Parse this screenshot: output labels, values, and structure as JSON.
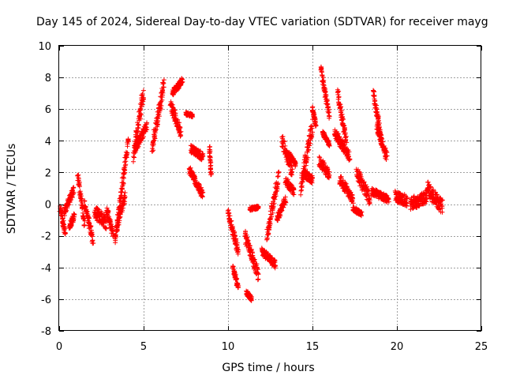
{
  "chart_data": {
    "type": "scatter",
    "title": "Day 145 of 2024, Sidereal Day-to-day VTEC variation (SDTVAR) for receiver mayg",
    "xlabel": "GPS time / hours",
    "ylabel": "SDTVAR / TECUs",
    "xlim": [
      0,
      25
    ],
    "ylim": [
      -8,
      10
    ],
    "xticks": [
      "0",
      "5",
      "10",
      "15",
      "20",
      "25"
    ],
    "yticks": [
      "-8",
      "-6",
      "-4",
      "-2",
      "0",
      "2",
      "4",
      "6",
      "8",
      "10"
    ],
    "grid": true,
    "marker": "plus",
    "color": "#ff0000",
    "segments": [
      {
        "x0": 0.05,
        "x1": 0.35,
        "y0": -0.2,
        "y1": -1.8,
        "spread": 0.6
      },
      {
        "x0": 0.3,
        "x1": 0.85,
        "y0": -0.5,
        "y1": 0.9,
        "spread": 0.5
      },
      {
        "x0": 0.6,
        "x1": 0.9,
        "y0": -1.5,
        "y1": -0.7,
        "spread": 0.4
      },
      {
        "x0": 1.1,
        "x1": 1.5,
        "y0": 1.8,
        "y1": -1.3,
        "spread": 0.5
      },
      {
        "x0": 1.5,
        "x1": 2.0,
        "y0": 0.1,
        "y1": -2.3,
        "spread": 0.6
      },
      {
        "x0": 2.1,
        "x1": 2.8,
        "y0": -0.5,
        "y1": -1.2,
        "spread": 0.8
      },
      {
        "x0": 2.8,
        "x1": 3.2,
        "y0": -0.3,
        "y1": -1.9,
        "spread": 0.6
      },
      {
        "x0": 3.3,
        "x1": 4.1,
        "y0": -2.3,
        "y1": 4.0,
        "spread": 0.8
      },
      {
        "x0": 3.4,
        "x1": 3.9,
        "y0": -1.5,
        "y1": 0.5,
        "spread": 0.6
      },
      {
        "x0": 4.4,
        "x1": 5.0,
        "y0": 3.0,
        "y1": 7.2,
        "spread": 1.0
      },
      {
        "x0": 4.5,
        "x1": 5.2,
        "y0": 3.5,
        "y1": 5.0,
        "spread": 0.6
      },
      {
        "x0": 5.5,
        "x1": 6.2,
        "y0": 3.5,
        "y1": 7.6,
        "spread": 0.9
      },
      {
        "x0": 6.7,
        "x1": 7.3,
        "y0": 7.0,
        "y1": 7.8,
        "spread": 0.4
      },
      {
        "x0": 6.6,
        "x1": 7.2,
        "y0": 6.3,
        "y1": 4.5,
        "spread": 0.7
      },
      {
        "x0": 7.5,
        "x1": 7.9,
        "y0": 5.7,
        "y1": 5.6,
        "spread": 0.2
      },
      {
        "x0": 7.8,
        "x1": 8.5,
        "y0": 3.5,
        "y1": 3.0,
        "spread": 0.5
      },
      {
        "x0": 7.7,
        "x1": 8.5,
        "y0": 2.2,
        "y1": 0.6,
        "spread": 0.5
      },
      {
        "x0": 8.9,
        "x1": 9.0,
        "y0": 3.7,
        "y1": 1.8,
        "spread": 0.2
      },
      {
        "x0": 10.0,
        "x1": 10.6,
        "y0": -0.5,
        "y1": -3.0,
        "spread": 0.6
      },
      {
        "x0": 10.3,
        "x1": 10.6,
        "y0": -4.0,
        "y1": -5.3,
        "spread": 0.4
      },
      {
        "x0": 11.0,
        "x1": 11.8,
        "y0": -2.0,
        "y1": -4.5,
        "spread": 0.8
      },
      {
        "x0": 11.1,
        "x1": 11.4,
        "y0": -5.6,
        "y1": -6.0,
        "spread": 0.3
      },
      {
        "x0": 11.3,
        "x1": 11.8,
        "y0": -0.3,
        "y1": -0.2,
        "spread": 0.2
      },
      {
        "x0": 12.0,
        "x1": 12.8,
        "y0": -3.0,
        "y1": -3.8,
        "spread": 0.5
      },
      {
        "x0": 12.3,
        "x1": 13.0,
        "y0": -2.0,
        "y1": 1.8,
        "spread": 0.8
      },
      {
        "x0": 12.9,
        "x1": 13.4,
        "y0": -1.0,
        "y1": 0.3,
        "spread": 0.5
      },
      {
        "x0": 13.2,
        "x1": 13.8,
        "y0": 4.0,
        "y1": 2.0,
        "spread": 0.8
      },
      {
        "x0": 13.4,
        "x1": 13.9,
        "y0": 1.5,
        "y1": 0.8,
        "spread": 0.5
      },
      {
        "x0": 13.6,
        "x1": 14.0,
        "y0": 3.2,
        "y1": 2.5,
        "spread": 0.3
      },
      {
        "x0": 14.3,
        "x1": 15.0,
        "y0": 1.0,
        "y1": 5.0,
        "spread": 1.0
      },
      {
        "x0": 14.5,
        "x1": 15.0,
        "y0": 2.0,
        "y1": 1.5,
        "spread": 0.6
      },
      {
        "x0": 15.0,
        "x1": 15.2,
        "y0": 6.0,
        "y1": 5.0,
        "spread": 0.3
      },
      {
        "x0": 15.5,
        "x1": 16.0,
        "y0": 8.5,
        "y1": 5.5,
        "spread": 0.6
      },
      {
        "x0": 15.4,
        "x1": 16.0,
        "y0": 2.7,
        "y1": 1.8,
        "spread": 0.7
      },
      {
        "x0": 15.6,
        "x1": 16.0,
        "y0": 4.5,
        "y1": 3.8,
        "spread": 0.3
      },
      {
        "x0": 16.5,
        "x1": 17.0,
        "y0": 7.0,
        "y1": 4.0,
        "spread": 0.6
      },
      {
        "x0": 16.3,
        "x1": 17.2,
        "y0": 4.5,
        "y1": 3.0,
        "spread": 0.6
      },
      {
        "x0": 16.6,
        "x1": 17.4,
        "y0": 1.6,
        "y1": 0.3,
        "spread": 0.6
      },
      {
        "x0": 17.4,
        "x1": 17.9,
        "y0": -0.3,
        "y1": -0.6,
        "spread": 0.3
      },
      {
        "x0": 17.6,
        "x1": 18.4,
        "y0": 2.0,
        "y1": 0.3,
        "spread": 0.8
      },
      {
        "x0": 18.6,
        "x1": 19.1,
        "y0": 7.0,
        "y1": 4.0,
        "spread": 0.6
      },
      {
        "x0": 18.8,
        "x1": 19.4,
        "y0": 4.9,
        "y1": 3.0,
        "spread": 0.6
      },
      {
        "x0": 18.5,
        "x1": 19.5,
        "y0": 0.8,
        "y1": 0.3,
        "spread": 0.5
      },
      {
        "x0": 19.9,
        "x1": 20.6,
        "y0": 0.5,
        "y1": 0.2,
        "spread": 0.7
      },
      {
        "x0": 20.8,
        "x1": 21.8,
        "y0": 0.0,
        "y1": 0.5,
        "spread": 0.8
      },
      {
        "x0": 21.8,
        "x1": 22.7,
        "y0": 1.0,
        "y1": -0.2,
        "spread": 0.9
      }
    ]
  }
}
